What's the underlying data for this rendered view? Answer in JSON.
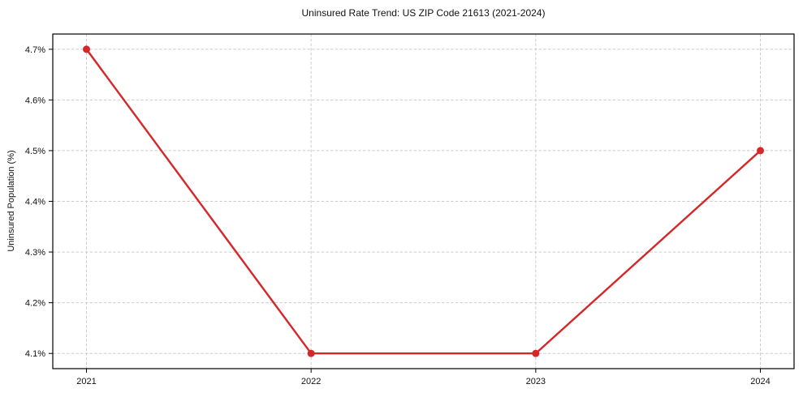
{
  "title": "Uninsured Rate Trend: US ZIP Code 21613 (2021-2024)",
  "chart_data": {
    "type": "line",
    "title": "Uninsured Rate Trend: US ZIP Code 21613 (2021-2024)",
    "xlabel": "",
    "ylabel": "Uninsured Population (%)",
    "x": [
      2021,
      2022,
      2023,
      2024
    ],
    "values": [
      4.7,
      4.1,
      4.1,
      4.5
    ],
    "xtick_labels": [
      "2021",
      "2022",
      "2023",
      "2024"
    ],
    "yticks": [
      4.1,
      4.2,
      4.3,
      4.4,
      4.5,
      4.6,
      4.7
    ],
    "ytick_labels": [
      "4.1%",
      "4.2%",
      "4.3%",
      "4.4%",
      "4.5%",
      "4.6%",
      "4.7%"
    ],
    "xlim": [
      2020.85,
      2024.15
    ],
    "ylim": [
      4.07,
      4.73
    ],
    "grid": true,
    "grid_style": "dashed",
    "legend": "none",
    "line_color": "#d62728",
    "marker": "circle",
    "marker_color": "#d62728",
    "grid_color": "#cccccc",
    "spine_color": "#000000"
  }
}
